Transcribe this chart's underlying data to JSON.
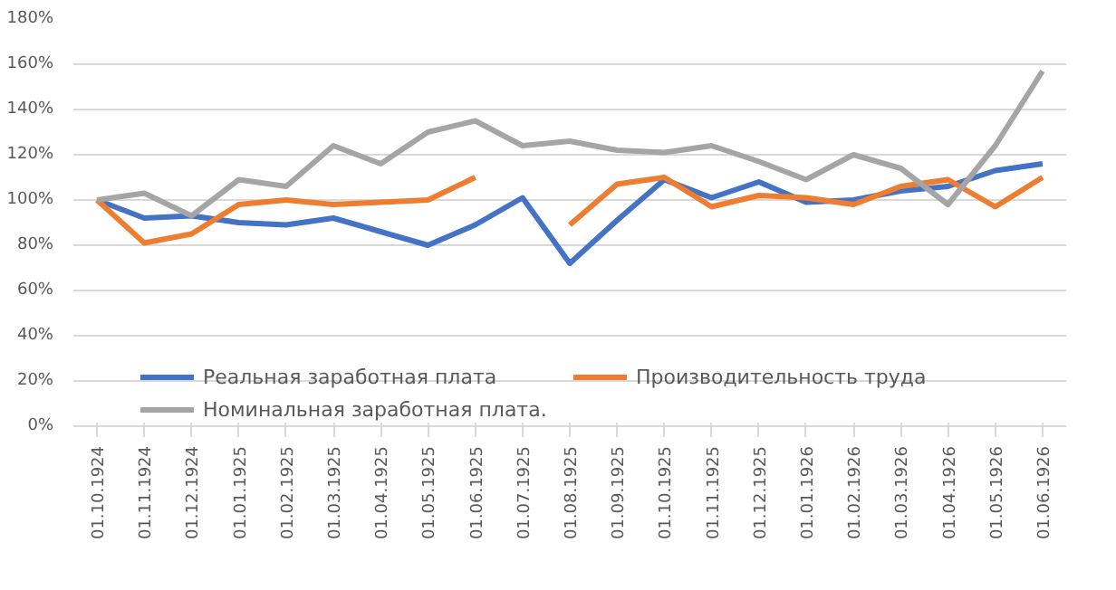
{
  "chart_data": {
    "type": "line",
    "categories": [
      "01.10.1924",
      "01.11.1924",
      "01.12.1924",
      "01.01.1925",
      "01.02.1925",
      "01.03.1925",
      "01.04.1925",
      "01.05.1925",
      "01.06.1925",
      "01.07.1925",
      "01.08.1925",
      "01.09.1925",
      "01.10.1925",
      "01.11.1925",
      "01.12.1925",
      "01.01.1926",
      "01.02.1926",
      "01.03.1926",
      "01.04.1926",
      "01.05.1926",
      "01.06.1926"
    ],
    "series": [
      {
        "name": "Реальная заработная плата",
        "color": "#4472c4",
        "values": [
          100,
          92,
          93,
          90,
          89,
          92,
          86,
          80,
          89,
          101,
          72,
          91,
          109,
          101,
          108,
          99,
          100,
          104,
          106,
          113,
          116
        ]
      },
      {
        "name": "Производительность труда",
        "color": "#ed7d31",
        "values": [
          100,
          81,
          85,
          98,
          100,
          98,
          99,
          100,
          110,
          null,
          89,
          107,
          110,
          97,
          102,
          101,
          98,
          106,
          109,
          97,
          110
        ]
      },
      {
        "name": "Номинальная заработная плата.",
        "color": "#a5a5a5",
        "values": [
          100,
          103,
          93,
          109,
          106,
          124,
          116,
          130,
          135,
          124,
          126,
          122,
          121,
          124,
          117,
          109,
          120,
          114,
          98,
          124,
          157
        ]
      }
    ],
    "ylim": [
      0,
      180
    ],
    "yticks": [
      {
        "value": 0,
        "label": "0%"
      },
      {
        "value": 20,
        "label": "20%"
      },
      {
        "value": 40,
        "label": "40%"
      },
      {
        "value": 60,
        "label": "60%"
      },
      {
        "value": 80,
        "label": "80%"
      },
      {
        "value": 100,
        "label": "100%"
      },
      {
        "value": 120,
        "label": "120%"
      },
      {
        "value": 140,
        "label": "140%"
      },
      {
        "value": 160,
        "label": "160%"
      },
      {
        "value": 180,
        "label": "180%"
      }
    ],
    "grid": "y",
    "legend": "bottom",
    "line_style": "solid",
    "marker": "none"
  }
}
